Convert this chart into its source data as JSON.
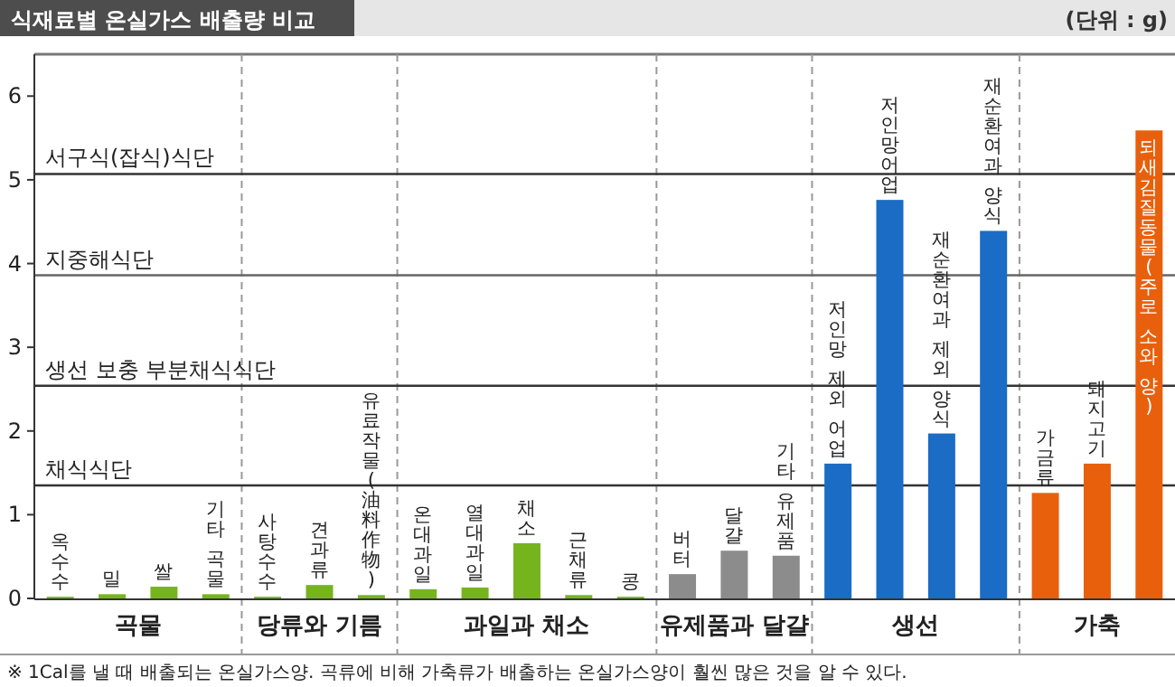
{
  "chart_data": {
    "type": "bar",
    "title": "식재료별 온실가스 배출량 비교",
    "ylabel": "(단위 : g)",
    "categories": [
      "옥수수",
      "밀",
      "쌀",
      "기타 곡물",
      "사탕수수",
      "견과류",
      "유료작물(油料作物)",
      "온대과일",
      "열대과일",
      "채소",
      "근채류",
      "콩",
      "버터",
      "달걀",
      "기타 유제품",
      "저인망 제외 어업",
      "저인망어업",
      "재순환여과 제외 양식",
      "재순환여과 양식",
      "가금류",
      "돼지고기",
      "되새김질동물(주로 소와 양)"
    ],
    "values": [
      0.02,
      0.05,
      0.14,
      0.05,
      0.02,
      0.16,
      0.04,
      0.11,
      0.13,
      0.66,
      0.04,
      0.02,
      0.29,
      0.57,
      0.51,
      1.61,
      4.76,
      1.97,
      4.39,
      1.26,
      1.61,
      5.59
    ],
    "colors": [
      "#76b41e",
      "#76b41e",
      "#76b41e",
      "#76b41e",
      "#76b41e",
      "#76b41e",
      "#76b41e",
      "#76b41e",
      "#76b41e",
      "#76b41e",
      "#76b41e",
      "#76b41e",
      "#8c8c8c",
      "#8c8c8c",
      "#8c8c8c",
      "#1a6cc4",
      "#1a6cc4",
      "#1a6cc4",
      "#1a6cc4",
      "#e8600c",
      "#e8600c",
      "#e8600c"
    ],
    "ylim": [
      0,
      6.5
    ],
    "yticks": [
      0,
      1,
      2,
      3,
      4,
      5,
      6
    ],
    "grid": false,
    "ref_lines": [
      {
        "axis": "y",
        "value": 5.07,
        "label": "서구식(잡식)식단",
        "color": "#333333"
      },
      {
        "axis": "y",
        "value": 3.86,
        "label": "지중해식단",
        "color": "#666666"
      },
      {
        "axis": "y",
        "value": 2.54,
        "label": "생선 보충 부분채식식단",
        "color": "#333333"
      },
      {
        "axis": "y",
        "value": 1.35,
        "label": "채식식단",
        "color": "#333333"
      }
    ],
    "annotations": [
      "곡물",
      "당류와 기름",
      "과일과 채소",
      "유제품과 달걀",
      "생선",
      "가축",
      "※ 1Cal를 낼 때 배출되는 온실가스양. 곡류에 비해 가축류가 배출하는 온실가스양이 훨씬 많은 것을 알 수 있다."
    ]
  }
}
